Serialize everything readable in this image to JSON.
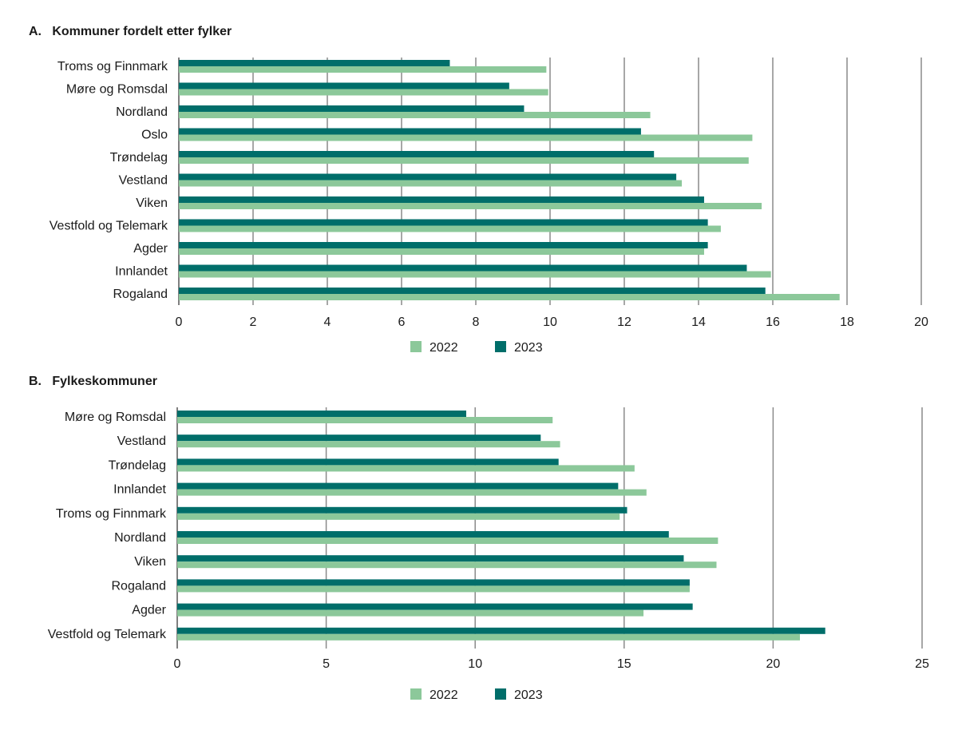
{
  "colors": {
    "2022": "#8cc89a",
    "2023": "#006e6a",
    "grid": "#8a8a8a"
  },
  "chart_data": [
    {
      "type": "bar",
      "orientation": "horizontal",
      "title": "A.   Kommuner fordelt etter fylker",
      "categories": [
        "Troms og Finnmark",
        "Møre og Romsdal",
        "Nordland",
        "Oslo",
        "Trøndelag",
        "Vestland",
        "Viken",
        "Vestfold og Telemark",
        "Agder",
        "Innlandet",
        "Rogaland"
      ],
      "series": [
        {
          "name": "2022",
          "values": [
            9.9,
            9.95,
            12.7,
            15.45,
            15.35,
            13.55,
            15.7,
            14.6,
            14.15,
            15.95,
            17.8
          ]
        },
        {
          "name": "2023",
          "values": [
            7.3,
            8.9,
            9.3,
            12.45,
            12.8,
            13.4,
            14.15,
            14.25,
            14.25,
            15.3,
            15.8
          ]
        }
      ],
      "xlim": [
        0,
        20
      ],
      "xticks": [
        "0",
        "2",
        "4",
        "6",
        "8",
        "10",
        "12",
        "14",
        "16",
        "18",
        "20"
      ],
      "grid": true,
      "legend": "bottom-center"
    },
    {
      "type": "bar",
      "orientation": "horizontal",
      "title": "B.   Fylkeskommuner",
      "categories": [
        "Møre og Romsdal",
        "Vestland",
        "Trøndelag",
        "Innlandet",
        "Troms og Finnmark",
        "Nordland",
        "Viken",
        "Rogaland",
        "Agder",
        "Vestfold og Telemark"
      ],
      "series": [
        {
          "name": "2022",
          "values": [
            12.6,
            12.85,
            15.35,
            15.75,
            14.85,
            18.15,
            18.1,
            17.2,
            15.65,
            20.9
          ]
        },
        {
          "name": "2023",
          "values": [
            9.7,
            12.2,
            12.8,
            14.8,
            15.1,
            16.5,
            17.0,
            17.2,
            17.3,
            21.75
          ]
        }
      ],
      "xlim": [
        0,
        25
      ],
      "xticks": [
        "0",
        "5",
        "10",
        "15",
        "20",
        "25"
      ],
      "grid": true,
      "legend": "bottom-center"
    }
  ]
}
